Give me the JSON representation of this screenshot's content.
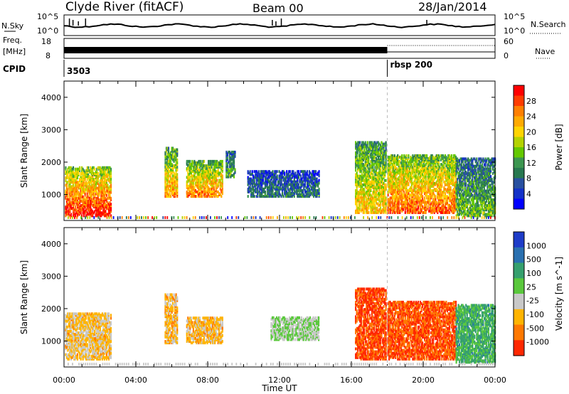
{
  "header": {
    "station": "Clyde River (fitACF)",
    "beam": "Beam 00",
    "date": "28/Jan/2014"
  },
  "noise_panel": {
    "left_label": "N.Sky",
    "right_label": "N.Search",
    "left_ticks": [
      "10^5",
      "10^0"
    ],
    "right_ticks": [
      "10^5",
      "10^0"
    ]
  },
  "freq_panel": {
    "left_label_1": "Freq.",
    "left_label_2": "[MHz]",
    "right_label": "Nave",
    "left_ticks": [
      "18",
      "8"
    ],
    "right_ticks": [
      "60",
      "0"
    ]
  },
  "cpid_panel": {
    "label": "CPID",
    "segments": [
      {
        "start_hour": 0,
        "name": "3503"
      },
      {
        "start_hour": 18,
        "name": "rbsp 200"
      }
    ]
  },
  "chart_data": [
    {
      "type": "heatmap",
      "title": "Power",
      "xlabel": "",
      "ylabel": "Slant Range [km]",
      "colorbar_label": "Power [dB]",
      "colorbar_ticks": [
        "28",
        "24",
        "20",
        "16",
        "12",
        "8",
        "4"
      ],
      "colorbar_colors": [
        "#ff0000",
        "#ff3c00",
        "#ff7f00",
        "#ffaa00",
        "#ffd400",
        "#b4d200",
        "#64c800",
        "#3c9650",
        "#287850",
        "#2850a0",
        "#1432c8",
        "#0000ff"
      ],
      "x_range_hours": [
        0,
        24
      ],
      "ylim": [
        200,
        4500
      ],
      "yticks": [
        "1000",
        "2000",
        "3000",
        "4000"
      ],
      "regions": [
        {
          "t0": 0.05,
          "t1": 2.6,
          "r0": 300,
          "r1": 1800,
          "level": 0.85
        },
        {
          "t0": 5.6,
          "t1": 6.3,
          "r0": 900,
          "r1": 2400,
          "level": 0.65
        },
        {
          "t0": 6.8,
          "t1": 8.8,
          "r0": 900,
          "r1": 2000,
          "level": 0.7
        },
        {
          "t0": 9.0,
          "t1": 9.5,
          "r0": 1500,
          "r1": 2300,
          "level": 0.35
        },
        {
          "t0": 10.2,
          "t1": 14.2,
          "r0": 900,
          "r1": 1700,
          "level": 0.25
        },
        {
          "t0": 16.2,
          "t1": 17.9,
          "r0": 400,
          "r1": 2600,
          "level": 0.6
        },
        {
          "t0": 18.0,
          "t1": 21.8,
          "r0": 400,
          "r1": 2200,
          "level": 0.75
        },
        {
          "t0": 21.8,
          "t1": 24.0,
          "r0": 300,
          "r1": 2100,
          "level": 0.4
        }
      ]
    },
    {
      "type": "heatmap",
      "title": "Velocity",
      "xlabel": "Time UT",
      "ylabel": "Slant Range [km]",
      "colorbar_label": "Velocity [m s^-1]",
      "colorbar_ticks": [
        "1000",
        "500",
        "100",
        "25",
        "-25",
        "-100",
        "-500",
        "-1000"
      ],
      "colorbar_colors": [
        "#1e3cc8",
        "#2a70b0",
        "#36a06e",
        "#5ac83c",
        "#c8c8c8",
        "#ffb400",
        "#ff7800",
        "#ff2800"
      ],
      "x_range_hours": [
        0,
        24
      ],
      "ylim": [
        200,
        4500
      ],
      "yticks": [
        "1000",
        "2000",
        "3000",
        "4000"
      ],
      "xticks": [
        "00:00",
        "04:00",
        "08:00",
        "12:00",
        "16:00",
        "20:00",
        "00:00"
      ],
      "regions": [
        {
          "t0": 0.05,
          "t1": 2.6,
          "r0": 400,
          "r1": 1800,
          "level": -0.3
        },
        {
          "t0": 5.6,
          "t1": 6.3,
          "r0": 900,
          "r1": 2400,
          "level": -0.35
        },
        {
          "t0": 6.8,
          "t1": 8.8,
          "r0": 900,
          "r1": 1700,
          "level": -0.35
        },
        {
          "t0": 11.5,
          "t1": 14.2,
          "r0": 1000,
          "r1": 1700,
          "level": 0.0
        },
        {
          "t0": 16.2,
          "t1": 17.9,
          "r0": 400,
          "r1": 2600,
          "level": -0.8
        },
        {
          "t0": 18.0,
          "t1": 21.8,
          "r0": 400,
          "r1": 2200,
          "level": -0.75
        },
        {
          "t0": 21.8,
          "t1": 24.0,
          "r0": 300,
          "r1": 2100,
          "level": 0.3
        }
      ]
    }
  ]
}
